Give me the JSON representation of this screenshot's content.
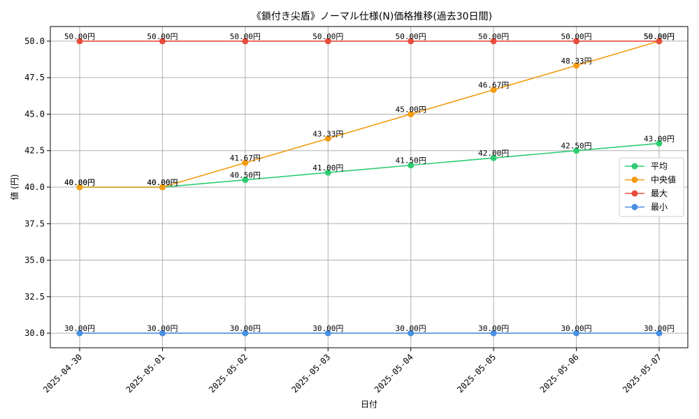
{
  "chart_data": {
    "type": "line",
    "title": "《鎖付き尖盾》ノーマル仕様(N)価格推移(過去30日間)",
    "xlabel": "日付",
    "ylabel": "値 (円)",
    "categories": [
      "2025-04-30",
      "2025-05-01",
      "2025-05-02",
      "2025-05-03",
      "2025-05-04",
      "2025-05-05",
      "2025-05-06",
      "2025-05-07"
    ],
    "ylim": [
      29.0,
      51.0
    ],
    "yticks": [
      30.0,
      32.5,
      35.0,
      37.5,
      40.0,
      42.5,
      45.0,
      47.5,
      50.0
    ],
    "grid": true,
    "legend_position": "right",
    "value_suffix": "円",
    "series": [
      {
        "name": "平均",
        "color": "#2ecc71",
        "values": [
          40.0,
          40.0,
          40.5,
          41.0,
          41.5,
          42.0,
          42.5,
          43.0
        ]
      },
      {
        "name": "中央値",
        "color": "#f39c12",
        "values": [
          40.0,
          40.0,
          41.67,
          43.33,
          45.0,
          46.67,
          48.33,
          50.0
        ]
      },
      {
        "name": "最大",
        "color": "#e74c3c",
        "values": [
          50.0,
          50.0,
          50.0,
          50.0,
          50.0,
          50.0,
          50.0,
          50.0
        ]
      },
      {
        "name": "最小",
        "color": "#4a90e2",
        "values": [
          30.0,
          30.0,
          30.0,
          30.0,
          30.0,
          30.0,
          30.0,
          30.0
        ]
      }
    ]
  }
}
